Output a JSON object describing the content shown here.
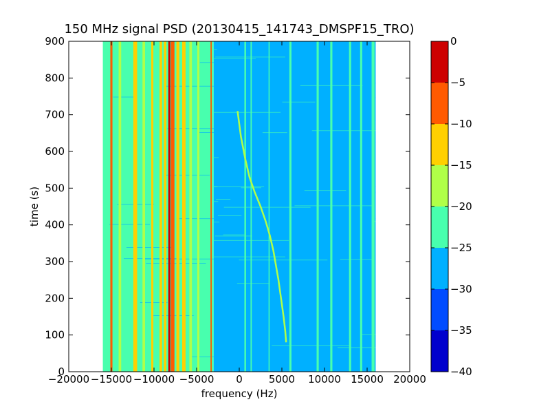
{
  "chart_data": {
    "type": "heatmap",
    "title": "150 MHz signal PSD (20130415_141743_DMSPF15_TRO)",
    "xlabel": "frequency (Hz)",
    "ylabel": "time (s)",
    "xlim": [
      -20000,
      20000
    ],
    "ylim": [
      0,
      900
    ],
    "data_extent_x": [
      -16000,
      16000
    ],
    "x_ticks": [
      -20000,
      -15000,
      -10000,
      -5000,
      0,
      5000,
      10000,
      15000,
      20000
    ],
    "x_tick_labels": [
      "−20000",
      "−15000",
      "−10000",
      "−5000",
      "0",
      "5000",
      "10000",
      "15000",
      "20000"
    ],
    "y_ticks": [
      0,
      100,
      200,
      300,
      400,
      500,
      600,
      700,
      800,
      900
    ],
    "y_tick_labels": [
      "0",
      "100",
      "200",
      "300",
      "400",
      "500",
      "600",
      "700",
      "800",
      "900"
    ],
    "colorbar": {
      "levels": [
        -40,
        -35,
        -30,
        -25,
        -20,
        -15,
        -10,
        -5,
        0
      ],
      "tick_labels": [
        "−40",
        "−35",
        "−30",
        "−25",
        "−20",
        "−15",
        "−10",
        "−5",
        "0"
      ],
      "colors": [
        "#0000cd",
        "#004cff",
        "#00b0ff",
        "#48ffae",
        "#b0ff48",
        "#ffd000",
        "#ff5a00",
        "#cd0000"
      ]
    },
    "background_bands": [
      {
        "x0": -16000,
        "x1": -3000,
        "level": -22
      },
      {
        "x0": -3000,
        "x1": 2500,
        "level": -27
      },
      {
        "x0": 2500,
        "x1": 16000,
        "level": -28
      }
    ],
    "vertical_lines": [
      {
        "x": -15000,
        "level": -7,
        "width": 250
      },
      {
        "x": -14000,
        "level": -17,
        "width": 300
      },
      {
        "x": -12200,
        "level": -12,
        "width": 450
      },
      {
        "x": -11200,
        "level": -17,
        "width": 300
      },
      {
        "x": -10200,
        "level": -14,
        "width": 250
      },
      {
        "x": -9200,
        "level": -12,
        "width": 300
      },
      {
        "x": -8700,
        "level": -12,
        "width": 300
      },
      {
        "x": -8200,
        "level": -3,
        "width": 250
      },
      {
        "x": -7800,
        "level": -8,
        "width": 400
      },
      {
        "x": -7200,
        "level": -12,
        "width": 350
      },
      {
        "x": -6500,
        "level": -14,
        "width": 400
      },
      {
        "x": -5700,
        "level": -17,
        "width": 300
      },
      {
        "x": -4800,
        "level": -18,
        "width": 250
      },
      {
        "x": -3300,
        "level": -7,
        "width": 150
      },
      {
        "x": 700,
        "level": -22,
        "width": 200
      },
      {
        "x": 1400,
        "level": -22,
        "width": 150
      },
      {
        "x": 3500,
        "level": -22,
        "width": 120
      },
      {
        "x": 6000,
        "level": -22,
        "width": 250
      },
      {
        "x": 9200,
        "level": -22,
        "width": 250
      },
      {
        "x": 10800,
        "level": -22,
        "width": 250
      },
      {
        "x": 13000,
        "level": -22,
        "width": 250
      },
      {
        "x": 14300,
        "level": -22,
        "width": 250
      },
      {
        "x": 15700,
        "level": -22,
        "width": 350
      }
    ],
    "doppler_trace": {
      "level": -17,
      "points": [
        [
          -200,
          710
        ],
        [
          200,
          640
        ],
        [
          700,
          580
        ],
        [
          1200,
          530
        ],
        [
          1800,
          490
        ],
        [
          2500,
          450
        ],
        [
          3100,
          410
        ],
        [
          3600,
          370
        ],
        [
          4000,
          330
        ],
        [
          4300,
          290
        ],
        [
          4600,
          250
        ],
        [
          4900,
          200
        ],
        [
          5200,
          150
        ],
        [
          5400,
          110
        ],
        [
          5500,
          80
        ]
      ]
    }
  }
}
